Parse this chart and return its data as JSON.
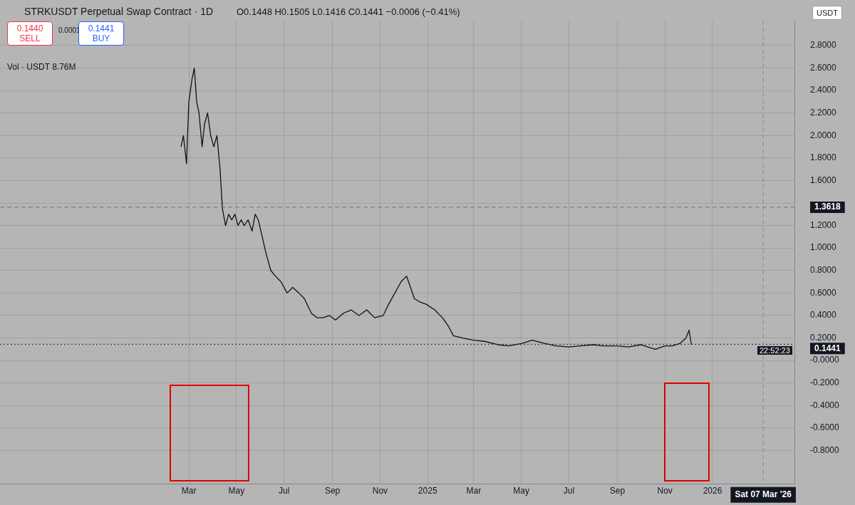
{
  "chart_data": {
    "type": "line",
    "title": "STRKUSDT Perpetual Swap Contract · 1D",
    "annotations": [
      "O0.1448 H0.1505 L0.1416 C0.1441 −0.0006 (−0.41%)",
      "0.1440 SELL",
      "0.0001",
      "0.1441 BUY",
      "Vol · USDT 8.76M",
      "22:52:23",
      "USDT"
    ],
    "x": [
      "2024-02-20",
      "2024-02-23",
      "2024-02-27",
      "2024-03-01",
      "2024-03-05",
      "2024-03-08",
      "2024-03-11",
      "2024-03-14",
      "2024-03-18",
      "2024-03-21",
      "2024-03-25",
      "2024-03-29",
      "2024-04-02",
      "2024-04-06",
      "2024-04-10",
      "2024-04-13",
      "2024-04-17",
      "2024-04-21",
      "2024-04-25",
      "2024-04-29",
      "2024-05-03",
      "2024-05-07",
      "2024-05-11",
      "2024-05-16",
      "2024-05-21",
      "2024-05-25",
      "2024-05-29",
      "2024-06-03",
      "2024-06-08",
      "2024-06-14",
      "2024-06-20",
      "2024-06-27",
      "2024-07-05",
      "2024-07-12",
      "2024-07-20",
      "2024-07-27",
      "2024-08-05",
      "2024-08-12",
      "2024-08-20",
      "2024-08-28",
      "2024-09-05",
      "2024-09-15",
      "2024-09-25",
      "2024-10-05",
      "2024-10-15",
      "2024-10-25",
      "2024-11-05",
      "2024-11-12",
      "2024-11-20",
      "2024-11-28",
      "2024-12-05",
      "2024-12-10",
      "2024-12-15",
      "2024-12-22",
      "2024-12-30",
      "2025-01-10",
      "2025-01-20",
      "2025-01-28",
      "2025-02-03",
      "2025-02-15",
      "2025-03-01",
      "2025-03-15",
      "2025-04-01",
      "2025-04-15",
      "2025-05-01",
      "2025-05-15",
      "2025-06-01",
      "2025-06-15",
      "2025-07-01",
      "2025-07-15",
      "2025-08-01",
      "2025-08-15",
      "2025-09-01",
      "2025-09-15",
      "2025-10-01",
      "2025-10-10",
      "2025-10-20",
      "2025-11-01",
      "2025-11-10",
      "2025-11-20",
      "2025-11-28",
      "2025-12-02",
      "2025-12-05"
    ],
    "series": [
      {
        "color": "#111111",
        "values": [
          1.9,
          2.0,
          1.75,
          2.3,
          2.5,
          2.6,
          2.3,
          2.2,
          1.9,
          2.1,
          2.2,
          2.0,
          1.9,
          2.0,
          1.7,
          1.35,
          1.2,
          1.3,
          1.25,
          1.3,
          1.2,
          1.25,
          1.2,
          1.25,
          1.15,
          1.3,
          1.25,
          1.1,
          0.95,
          0.8,
          0.75,
          0.7,
          0.6,
          0.65,
          0.6,
          0.55,
          0.42,
          0.38,
          0.38,
          0.4,
          0.36,
          0.42,
          0.45,
          0.4,
          0.45,
          0.38,
          0.4,
          0.5,
          0.6,
          0.7,
          0.75,
          0.65,
          0.55,
          0.52,
          0.5,
          0.45,
          0.38,
          0.3,
          0.22,
          0.2,
          0.18,
          0.17,
          0.14,
          0.13,
          0.15,
          0.18,
          0.15,
          0.13,
          0.12,
          0.13,
          0.14,
          0.13,
          0.13,
          0.12,
          0.14,
          0.12,
          0.1,
          0.13,
          0.13,
          0.15,
          0.2,
          0.27,
          0.14
        ]
      }
    ],
    "xlim": [
      "2023-07-03",
      "2026-04-16"
    ],
    "xticks": [
      {
        "value": "2024-03-01",
        "label": "Mar"
      },
      {
        "value": "2024-05-01",
        "label": "May"
      },
      {
        "value": "2024-07-01",
        "label": "Jul"
      },
      {
        "value": "2024-09-01",
        "label": "Sep"
      },
      {
        "value": "2024-11-01",
        "label": "Nov"
      },
      {
        "value": "2025-01-01",
        "label": "2025"
      },
      {
        "value": "2025-03-01",
        "label": "Mar"
      },
      {
        "value": "2025-05-01",
        "label": "May"
      },
      {
        "value": "2025-07-01",
        "label": "Jul"
      },
      {
        "value": "2025-09-01",
        "label": "Sep"
      },
      {
        "value": "2025-11-01",
        "label": "Nov"
      },
      {
        "value": "2026-01-01",
        "label": "2026"
      }
    ],
    "ylim": [
      -1.1,
      3.02
    ],
    "yticks": [
      {
        "value": 2.8,
        "label": "2.8000"
      },
      {
        "value": 2.6,
        "label": "2.6000"
      },
      {
        "value": 2.4,
        "label": "2.4000"
      },
      {
        "value": 2.2,
        "label": "2.2000"
      },
      {
        "value": 2.0,
        "label": "2.0000"
      },
      {
        "value": 1.8,
        "label": "1.8000"
      },
      {
        "value": 1.6,
        "label": "1.6000"
      },
      {
        "value": 1.4,
        "label": null
      },
      {
        "value": 1.2,
        "label": "1.2000"
      },
      {
        "value": 1.0,
        "label": "1.0000"
      },
      {
        "value": 0.8,
        "label": "0.8000"
      },
      {
        "value": 0.6,
        "label": "0.6000"
      },
      {
        "value": 0.4,
        "label": "0.4000"
      },
      {
        "value": 0.2,
        "label": "0.2000"
      },
      {
        "value": 0,
        "label": "-0.0000"
      },
      {
        "value": -0.2,
        "label": "-0.2000"
      },
      {
        "value": -0.4,
        "label": "-0.4000"
      },
      {
        "value": -0.6,
        "label": "-0.6000"
      },
      {
        "value": -0.8,
        "label": "-0.8000"
      }
    ],
    "ref_lines": [
      {
        "axis": "y",
        "value": 0.1441,
        "label": "0.1441",
        "line_style": "dotted",
        "color": "#222222"
      },
      {
        "axis": "y",
        "value": 1.3618,
        "label": "1.3618",
        "line_style": "dashed",
        "color": "#777777"
      },
      {
        "axis": "x",
        "value": "2026-03-07",
        "label": "Sat 07 Mar '26",
        "line_style": "dashed",
        "color": "#888888"
      }
    ],
    "grid": true,
    "legend": false,
    "marker": "none",
    "line_style": "solid"
  }
}
